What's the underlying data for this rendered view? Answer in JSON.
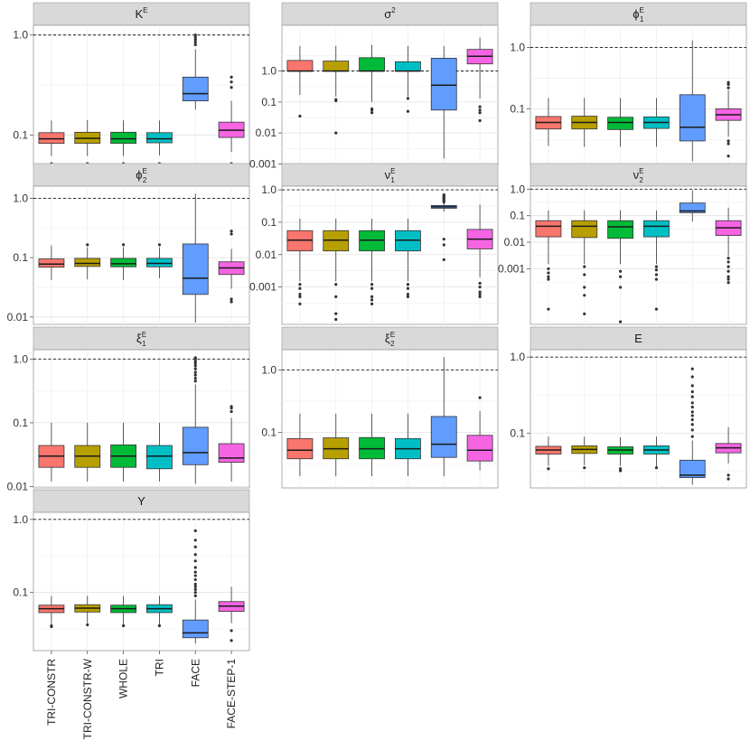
{
  "figure": {
    "methods": [
      "TRI-CONSTR",
      "TRI-CONSTR-W",
      "WHOLE",
      "TRI",
      "FACE",
      "FACE-STEP-1"
    ],
    "colors": {
      "TRI-CONSTR": "#F8766D",
      "TRI-CONSTR-W": "#B79F00",
      "WHOLE": "#00BA38",
      "TRI": "#00BFC4",
      "FACE": "#619CFF",
      "FACE-STEP-1": "#F564E3"
    },
    "y_scale": "log10",
    "reference_line": 1.0
  },
  "chart_data": [
    {
      "type": "boxplot",
      "title": "K",
      "title_sup": "E",
      "title_sub": "",
      "yticks": [
        "0.1",
        "1.0"
      ],
      "ylim": [
        0.05,
        1.25
      ],
      "ref": 1.0,
      "boxes": [
        {
          "q1": 0.083,
          "med": 0.092,
          "q3": 0.106,
          "lo": 0.062,
          "hi": 0.14,
          "out": [
            0.052
          ]
        },
        {
          "q1": 0.083,
          "med": 0.093,
          "q3": 0.107,
          "lo": 0.062,
          "hi": 0.142,
          "out": [
            0.052
          ]
        },
        {
          "q1": 0.083,
          "med": 0.092,
          "q3": 0.107,
          "lo": 0.062,
          "hi": 0.141,
          "out": [
            0.052
          ]
        },
        {
          "q1": 0.084,
          "med": 0.092,
          "q3": 0.106,
          "lo": 0.063,
          "hi": 0.14,
          "out": [
            0.052
          ]
        },
        {
          "q1": 0.22,
          "med": 0.26,
          "q3": 0.38,
          "lo": 0.18,
          "hi": 0.72,
          "out": [
            0.8,
            0.85,
            0.9,
            0.95,
            1.0
          ]
        },
        {
          "q1": 0.095,
          "med": 0.112,
          "q3": 0.135,
          "lo": 0.068,
          "hi": 0.22,
          "out": [
            0.052,
            0.3,
            0.34,
            0.38
          ]
        }
      ]
    },
    {
      "type": "boxplot",
      "title": "σ",
      "title_sup": "2",
      "title_sub": "",
      "yticks": [
        "0.001",
        "0.01",
        "0.1",
        "1.0"
      ],
      "ylim": [
        0.0009,
        30
      ],
      "ref": 1.0,
      "boxes": [
        {
          "q1": 1.0,
          "med": 1.0,
          "q3": 2.2,
          "lo": 0.17,
          "hi": 6.5,
          "out": [
            0.035
          ]
        },
        {
          "q1": 1.0,
          "med": 1.0,
          "q3": 2.1,
          "lo": 0.15,
          "hi": 6.5,
          "out": [
            0.12,
            0.11,
            0.01
          ]
        },
        {
          "q1": 1.0,
          "med": 1.0,
          "q3": 2.7,
          "lo": 0.1,
          "hi": 7,
          "out": [
            0.06,
            0.055,
            0.045
          ]
        },
        {
          "q1": 1.0,
          "med": 1.0,
          "q3": 2.0,
          "lo": 0.15,
          "hi": 6.5,
          "out": [
            0.13,
            0.05
          ]
        },
        {
          "q1": 0.055,
          "med": 0.35,
          "q3": 2.6,
          "lo": 0.0015,
          "hi": 6.5,
          "out": []
        },
        {
          "q1": 1.7,
          "med": 3.0,
          "q3": 5.0,
          "lo": 0.13,
          "hi": 12,
          "out": [
            0.07,
            0.055,
            0.045,
            0.025
          ]
        }
      ]
    },
    {
      "type": "boxplot",
      "title": "ϕ",
      "title_sup": "E",
      "title_sub": "1",
      "yticks": [
        "0.1",
        "1.0"
      ],
      "ylim": [
        0.012,
        2.3
      ],
      "ref": 1.0,
      "boxes": [
        {
          "q1": 0.047,
          "med": 0.06,
          "q3": 0.075,
          "lo": 0.025,
          "hi": 0.15,
          "out": []
        },
        {
          "q1": 0.047,
          "med": 0.06,
          "q3": 0.076,
          "lo": 0.024,
          "hi": 0.15,
          "out": []
        },
        {
          "q1": 0.046,
          "med": 0.06,
          "q3": 0.073,
          "lo": 0.024,
          "hi": 0.15,
          "out": []
        },
        {
          "q1": 0.048,
          "med": 0.06,
          "q3": 0.074,
          "lo": 0.024,
          "hi": 0.15,
          "out": []
        },
        {
          "q1": 0.03,
          "med": 0.05,
          "q3": 0.17,
          "lo": 0.014,
          "hi": 1.3,
          "out": []
        },
        {
          "q1": 0.065,
          "med": 0.08,
          "q3": 0.1,
          "lo": 0.035,
          "hi": 0.2,
          "out": [
            0.027,
            0.03,
            0.017,
            0.22,
            0.25,
            0.27
          ]
        }
      ]
    },
    {
      "type": "boxplot",
      "title": "ϕ",
      "title_sup": "E",
      "title_sub": "2",
      "yticks": [
        "0.01",
        "0.1",
        "1.0"
      ],
      "ylim": [
        0.0075,
        1.6
      ],
      "ref": 1.0,
      "boxes": [
        {
          "q1": 0.069,
          "med": 0.078,
          "q3": 0.095,
          "lo": 0.042,
          "hi": 0.16,
          "out": []
        },
        {
          "q1": 0.071,
          "med": 0.08,
          "q3": 0.097,
          "lo": 0.043,
          "hi": 0.15,
          "out": [
            0.165
          ]
        },
        {
          "q1": 0.07,
          "med": 0.079,
          "q3": 0.097,
          "lo": 0.042,
          "hi": 0.15,
          "out": [
            0.165
          ]
        },
        {
          "q1": 0.07,
          "med": 0.08,
          "q3": 0.097,
          "lo": 0.045,
          "hi": 0.15,
          "out": [
            0.165
          ]
        },
        {
          "q1": 0.024,
          "med": 0.045,
          "q3": 0.17,
          "lo": 0.008,
          "hi": 1.2,
          "out": []
        },
        {
          "q1": 0.052,
          "med": 0.067,
          "q3": 0.085,
          "lo": 0.03,
          "hi": 0.14,
          "out": [
            0.02,
            0.018,
            0.25,
            0.28
          ]
        }
      ]
    },
    {
      "type": "boxplot",
      "title": "ν",
      "title_sup": "E",
      "title_sub": "1",
      "yticks": [
        "0.001",
        "0.01",
        "0.1",
        "1.0"
      ],
      "ylim": [
        7e-05,
        1.3
      ],
      "ref": 1.0,
      "boxes": [
        {
          "q1": 0.013,
          "med": 0.028,
          "q3": 0.055,
          "lo": 0.0015,
          "hi": 0.13,
          "out": [
            0.0012,
            0.0009,
            0.0006,
            0.0005,
            0.0003
          ]
        },
        {
          "q1": 0.013,
          "med": 0.028,
          "q3": 0.055,
          "lo": 0.0015,
          "hi": 0.13,
          "out": [
            0.0012,
            0.0005,
            0.00015,
            0.0001
          ]
        },
        {
          "q1": 0.013,
          "med": 0.028,
          "q3": 0.055,
          "lo": 0.0015,
          "hi": 0.13,
          "out": [
            0.0012,
            0.0009,
            0.0005,
            0.0004,
            0.0003
          ]
        },
        {
          "q1": 0.013,
          "med": 0.028,
          "q3": 0.055,
          "lo": 0.0015,
          "hi": 0.13,
          "out": [
            0.0012,
            0.0009,
            0.0006,
            0.0005
          ]
        },
        {
          "q1": 0.27,
          "med": 0.3,
          "q3": 0.33,
          "lo": 0.21,
          "hi": 0.4,
          "out": [
            0.42,
            0.47,
            0.5,
            0.55,
            0.6,
            0.65,
            0.7,
            0.03,
            0.02,
            0.007
          ]
        },
        {
          "q1": 0.015,
          "med": 0.03,
          "q3": 0.06,
          "lo": 0.002,
          "hi": 0.35,
          "out": [
            0.0013,
            0.001,
            0.0007,
            0.0006,
            0.0005
          ]
        }
      ]
    },
    {
      "type": "boxplot",
      "title": "ν",
      "title_sup": "E",
      "title_sub": "2",
      "yticks": [
        "0.001",
        "0.01",
        "0.1",
        "1.0"
      ],
      "ylim": [
        8e-06,
        1.3
      ],
      "ref": 1.0,
      "boxes": [
        {
          "q1": 0.016,
          "med": 0.04,
          "q3": 0.065,
          "lo": 0.0015,
          "hi": 0.16,
          "out": [
            0.001,
            0.0007,
            0.0005,
            0.0004,
            3e-05
          ]
        },
        {
          "q1": 0.015,
          "med": 0.04,
          "q3": 0.065,
          "lo": 0.0015,
          "hi": 0.16,
          "out": [
            0.0012,
            0.0006,
            0.0002,
            0.0001,
            2e-05
          ]
        },
        {
          "q1": 0.014,
          "med": 0.038,
          "q3": 0.065,
          "lo": 0.0015,
          "hi": 0.16,
          "out": [
            0.0008,
            0.0005,
            0.0002,
            1e-05
          ]
        },
        {
          "q1": 0.016,
          "med": 0.04,
          "q3": 0.065,
          "lo": 0.0015,
          "hi": 0.16,
          "out": [
            0.0012,
            0.0009,
            0.0006,
            0.0004,
            3e-05
          ]
        },
        {
          "q1": 0.13,
          "med": 0.15,
          "q3": 0.3,
          "lo": 0.06,
          "hi": 0.9,
          "out": []
        },
        {
          "q1": 0.018,
          "med": 0.035,
          "q3": 0.065,
          "lo": 0.003,
          "hi": 0.2,
          "out": [
            0.0025,
            0.0018,
            0.0012,
            0.0008,
            0.0005,
            0.0004,
            0.0003
          ]
        }
      ]
    },
    {
      "type": "boxplot",
      "title": "ξ",
      "title_sup": "E",
      "title_sub": "1",
      "yticks": [
        "0.01",
        "0.1",
        "1.0"
      ],
      "ylim": [
        0.0095,
        1.4
      ],
      "ref": 1.0,
      "boxes": [
        {
          "q1": 0.02,
          "med": 0.03,
          "q3": 0.044,
          "lo": 0.012,
          "hi": 0.1,
          "out": []
        },
        {
          "q1": 0.02,
          "med": 0.03,
          "q3": 0.044,
          "lo": 0.012,
          "hi": 0.1,
          "out": []
        },
        {
          "q1": 0.02,
          "med": 0.03,
          "q3": 0.045,
          "lo": 0.012,
          "hi": 0.1,
          "out": []
        },
        {
          "q1": 0.019,
          "med": 0.03,
          "q3": 0.044,
          "lo": 0.012,
          "hi": 0.1,
          "out": []
        },
        {
          "q1": 0.022,
          "med": 0.034,
          "q3": 0.085,
          "lo": 0.011,
          "hi": 0.4,
          "out": [
            0.45,
            0.5,
            0.56,
            0.62,
            0.7,
            0.78,
            0.85,
            0.92,
            1.0,
            1.05
          ]
        },
        {
          "q1": 0.024,
          "med": 0.028,
          "q3": 0.047,
          "lo": 0.012,
          "hi": 0.12,
          "out": [
            0.15,
            0.17,
            0.18
          ]
        }
      ]
    },
    {
      "type": "boxplot",
      "title": "ξ",
      "title_sup": "E",
      "title_sub": "2",
      "yticks": [
        "0.1",
        "1.0"
      ],
      "ylim": [
        0.013,
        2.1
      ],
      "ref": 1.0,
      "boxes": [
        {
          "q1": 0.038,
          "med": 0.052,
          "q3": 0.08,
          "lo": 0.02,
          "hi": 0.2,
          "out": []
        },
        {
          "q1": 0.038,
          "med": 0.055,
          "q3": 0.082,
          "lo": 0.02,
          "hi": 0.2,
          "out": []
        },
        {
          "q1": 0.038,
          "med": 0.055,
          "q3": 0.083,
          "lo": 0.02,
          "hi": 0.2,
          "out": []
        },
        {
          "q1": 0.038,
          "med": 0.055,
          "q3": 0.08,
          "lo": 0.02,
          "hi": 0.2,
          "out": []
        },
        {
          "q1": 0.04,
          "med": 0.065,
          "q3": 0.18,
          "lo": 0.02,
          "hi": 1.6,
          "out": []
        },
        {
          "q1": 0.035,
          "med": 0.052,
          "q3": 0.09,
          "lo": 0.025,
          "hi": 0.22,
          "out": [
            0.36
          ]
        }
      ]
    },
    {
      "type": "boxplot",
      "title": "E",
      "title_sup": "",
      "title_sub": "",
      "yticks": [
        "0.1",
        "1.0"
      ],
      "ylim": [
        0.019,
        1.25
      ],
      "ref": 1.0,
      "boxes": [
        {
          "q1": 0.053,
          "med": 0.06,
          "q3": 0.067,
          "lo": 0.037,
          "hi": 0.09,
          "out": [
            0.034
          ]
        },
        {
          "q1": 0.054,
          "med": 0.061,
          "q3": 0.068,
          "lo": 0.038,
          "hi": 0.09,
          "out": [
            0.035
          ]
        },
        {
          "q1": 0.053,
          "med": 0.06,
          "q3": 0.066,
          "lo": 0.037,
          "hi": 0.088,
          "out": [
            0.034,
            0.032
          ]
        },
        {
          "q1": 0.053,
          "med": 0.06,
          "q3": 0.068,
          "lo": 0.036,
          "hi": 0.09,
          "out": [
            0.035
          ]
        },
        {
          "q1": 0.026,
          "med": 0.028,
          "q3": 0.044,
          "lo": 0.021,
          "hi": 0.08,
          "out": [
            0.09,
            0.11,
            0.13,
            0.15,
            0.17,
            0.19,
            0.22,
            0.25,
            0.3,
            0.35,
            0.42,
            0.55,
            0.7
          ]
        },
        {
          "q1": 0.055,
          "med": 0.064,
          "q3": 0.073,
          "lo": 0.04,
          "hi": 0.12,
          "out": [
            0.028,
            0.025
          ]
        }
      ]
    },
    {
      "type": "boxplot",
      "title": "Y",
      "title_sup": "",
      "title_sub": "",
      "yticks": [
        "0.1",
        "1.0"
      ],
      "ylim": [
        0.016,
        1.25
      ],
      "ref": 1.0,
      "boxes": [
        {
          "q1": 0.053,
          "med": 0.06,
          "q3": 0.067,
          "lo": 0.037,
          "hi": 0.09,
          "out": [
            0.035,
            0.034
          ]
        },
        {
          "q1": 0.054,
          "med": 0.061,
          "q3": 0.068,
          "lo": 0.038,
          "hi": 0.09,
          "out": [
            0.036
          ]
        },
        {
          "q1": 0.053,
          "med": 0.06,
          "q3": 0.067,
          "lo": 0.037,
          "hi": 0.089,
          "out": [
            0.035
          ]
        },
        {
          "q1": 0.053,
          "med": 0.06,
          "q3": 0.068,
          "lo": 0.036,
          "hi": 0.09,
          "out": [
            0.035
          ]
        },
        {
          "q1": 0.024,
          "med": 0.028,
          "q3": 0.042,
          "lo": 0.02,
          "hi": 0.08,
          "out": [
            0.09,
            0.1,
            0.11,
            0.12,
            0.13,
            0.15,
            0.17,
            0.19,
            0.22,
            0.27,
            0.33,
            0.42,
            0.52,
            0.7
          ]
        },
        {
          "q1": 0.055,
          "med": 0.065,
          "q3": 0.075,
          "lo": 0.038,
          "hi": 0.12,
          "out": [
            0.03,
            0.022
          ]
        }
      ]
    }
  ]
}
